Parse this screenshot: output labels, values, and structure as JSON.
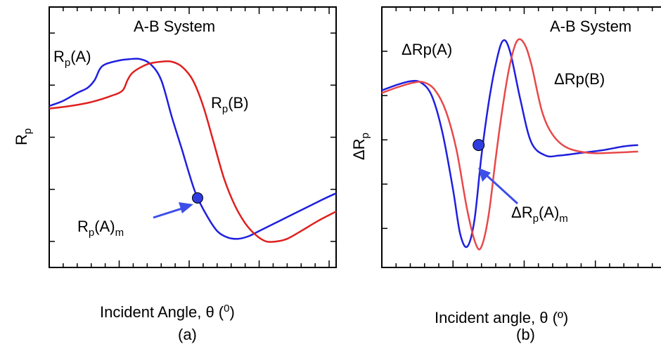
{
  "chart_data": [
    {
      "panel_label": "(a)",
      "type": "line",
      "annotation_title": "A-B System",
      "xlabel": "Incident Angle, θ (⁰)",
      "ylabel": "Rp",
      "grid": false,
      "series": [
        {
          "name": "Rp(A)",
          "color": "#1f1fe0",
          "points": [
            [
              0,
              0.62
            ],
            [
              0.2,
              0.64
            ],
            [
              0.4,
              0.67
            ],
            [
              0.55,
              0.69
            ],
            [
              0.65,
              0.72
            ],
            [
              0.72,
              0.76
            ],
            [
              0.8,
              0.78
            ],
            [
              1,
              0.795
            ],
            [
              1.15,
              0.8
            ],
            [
              1.3,
              0.8
            ],
            [
              1.45,
              0.78
            ],
            [
              1.6,
              0.72
            ],
            [
              1.75,
              0.58
            ],
            [
              1.9,
              0.45
            ],
            [
              2,
              0.36
            ],
            [
              2.1,
              0.28
            ],
            [
              2.25,
              0.2
            ],
            [
              2.4,
              0.14
            ],
            [
              2.55,
              0.115
            ],
            [
              2.7,
              0.11
            ],
            [
              2.85,
              0.12
            ],
            [
              3,
              0.14
            ],
            [
              3.3,
              0.18
            ],
            [
              3.6,
              0.22
            ],
            [
              3.9,
              0.26
            ],
            [
              4.1,
              0.285
            ]
          ]
        },
        {
          "name": "Rp(B)",
          "color": "#e01f1f",
          "points": [
            [
              0,
              0.61
            ],
            [
              0.3,
              0.62
            ],
            [
              0.6,
              0.635
            ],
            [
              0.9,
              0.66
            ],
            [
              1.05,
              0.68
            ],
            [
              1.12,
              0.72
            ],
            [
              1.2,
              0.75
            ],
            [
              1.4,
              0.78
            ],
            [
              1.6,
              0.79
            ],
            [
              1.75,
              0.79
            ],
            [
              1.9,
              0.77
            ],
            [
              2.05,
              0.72
            ],
            [
              2.2,
              0.62
            ],
            [
              2.35,
              0.48
            ],
            [
              2.5,
              0.34
            ],
            [
              2.65,
              0.24
            ],
            [
              2.8,
              0.17
            ],
            [
              2.95,
              0.125
            ],
            [
              3.1,
              0.1
            ],
            [
              3.25,
              0.1
            ],
            [
              3.4,
              0.11
            ],
            [
              3.6,
              0.14
            ],
            [
              3.85,
              0.18
            ],
            [
              4.1,
              0.215
            ]
          ]
        }
      ],
      "annotations": [
        {
          "text": "Rp(A)",
          "near_series": "Rp(A)"
        },
        {
          "text": "Rp(B)",
          "near_series": "Rp(B)"
        },
        {
          "text": "Rp(A)m",
          "marker_x": 2.12,
          "marker_y": 0.267
        }
      ]
    },
    {
      "panel_label": "(b)",
      "type": "line",
      "annotation_title": "A-B System",
      "xlabel": "Incident angle, θ (º)",
      "ylabel": "ΔRp",
      "grid": false,
      "series": [
        {
          "name": "ΔRp(A)",
          "color": "#1f1fe0",
          "points": [
            [
              0,
              0.68
            ],
            [
              0.2,
              0.7
            ],
            [
              0.4,
              0.715
            ],
            [
              0.55,
              0.71
            ],
            [
              0.7,
              0.66
            ],
            [
              0.85,
              0.52
            ],
            [
              1,
              0.3
            ],
            [
              1.1,
              0.13
            ],
            [
              1.2,
              0.08
            ],
            [
              1.3,
              0.18
            ],
            [
              1.4,
              0.43
            ],
            [
              1.5,
              0.63
            ],
            [
              1.6,
              0.78
            ],
            [
              1.7,
              0.87
            ],
            [
              1.8,
              0.83
            ],
            [
              1.95,
              0.64
            ],
            [
              2.1,
              0.48
            ],
            [
              2.3,
              0.43
            ],
            [
              2.5,
              0.43
            ],
            [
              2.8,
              0.44
            ],
            [
              3.1,
              0.45
            ],
            [
              3.4,
              0.465
            ],
            [
              3.6,
              0.47
            ]
          ]
        },
        {
          "name": "ΔRp(B)",
          "color": "#e8484a",
          "points": [
            [
              0,
              0.67
            ],
            [
              0.2,
              0.69
            ],
            [
              0.45,
              0.71
            ],
            [
              0.6,
              0.71
            ],
            [
              0.75,
              0.68
            ],
            [
              0.9,
              0.6
            ],
            [
              1.05,
              0.45
            ],
            [
              1.2,
              0.22
            ],
            [
              1.32,
              0.09
            ],
            [
              1.4,
              0.08
            ],
            [
              1.5,
              0.2
            ],
            [
              1.6,
              0.42
            ],
            [
              1.7,
              0.62
            ],
            [
              1.8,
              0.78
            ],
            [
              1.9,
              0.87
            ],
            [
              2,
              0.86
            ],
            [
              2.1,
              0.78
            ],
            [
              2.25,
              0.6
            ],
            [
              2.4,
              0.51
            ],
            [
              2.6,
              0.46
            ],
            [
              2.9,
              0.44
            ],
            [
              3.2,
              0.44
            ],
            [
              3.6,
              0.445
            ]
          ]
        }
      ],
      "annotations": [
        {
          "text": "ΔRp(A)",
          "near_series": "ΔRp(A)"
        },
        {
          "text": "ΔRp(B)",
          "near_series": "ΔRp(B)"
        },
        {
          "text": "ΔRp(A)m",
          "marker_x": 1.36,
          "marker_y": 0.47
        }
      ]
    }
  ]
}
